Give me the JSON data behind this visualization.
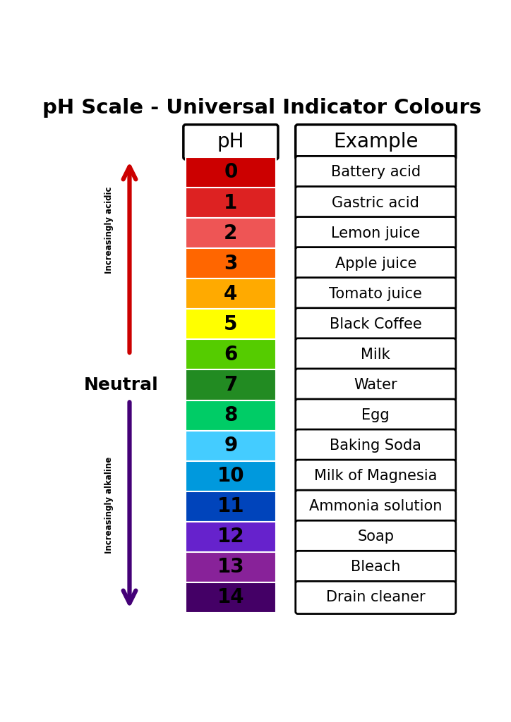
{
  "title": "pH Scale - Universal Indicator Colours",
  "ph_values": [
    0,
    1,
    2,
    3,
    4,
    5,
    6,
    7,
    8,
    9,
    10,
    11,
    12,
    13,
    14
  ],
  "examples": [
    "Battery acid",
    "Gastric acid",
    "Lemon juice",
    "Apple juice",
    "Tomato juice",
    "Black Coffee",
    "Milk",
    "Water",
    "Egg",
    "Baking Soda",
    "Milk of Magnesia",
    "Ammonia solution",
    "Soap",
    "Bleach",
    "Drain cleaner"
  ],
  "colors": [
    "#CC0000",
    "#DD2222",
    "#EE5555",
    "#FF6600",
    "#FFAA00",
    "#FFFF00",
    "#55CC00",
    "#228B22",
    "#00CC66",
    "#44CCFF",
    "#0099DD",
    "#0044BB",
    "#6622CC",
    "#882299",
    "#440066"
  ],
  "background_color": "#FFFFFF",
  "title_fontsize": 21,
  "header_fontsize": 20,
  "ph_fontsize": 20,
  "example_fontsize": 15,
  "acid_arrow_color": "#CC0000",
  "alkaline_arrow_color": "#440077",
  "neutral_text": "Neutral",
  "acid_label": "Increasingly acidic",
  "alkaline_label": "Increasingly alkaline"
}
